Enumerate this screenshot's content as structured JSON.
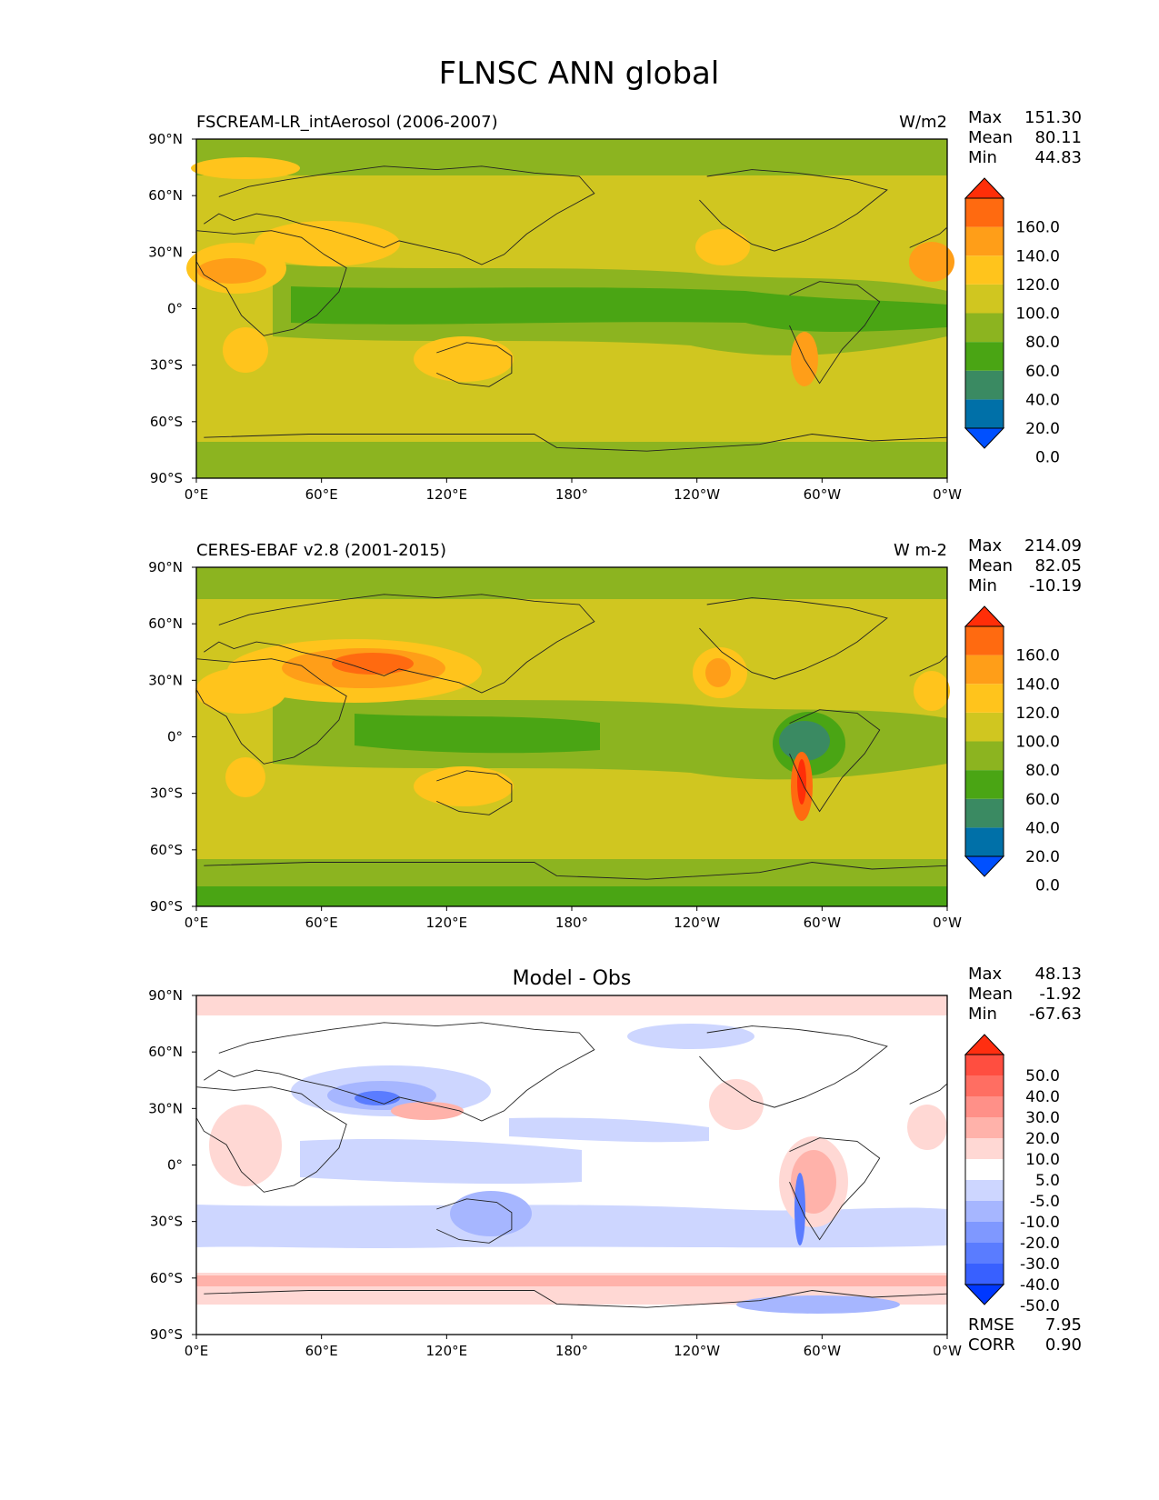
{
  "title": "FLNSC ANN global",
  "lon_ticks": [
    "0°E",
    "60°E",
    "120°E",
    "180°",
    "120°W",
    "60°W",
    "0°W"
  ],
  "lat_ticks": [
    "90°N",
    "60°N",
    "30°N",
    "0°",
    "30°S",
    "60°S",
    "90°S"
  ],
  "panels": [
    {
      "id": "model",
      "left_title": "FSCREAM-LR_intAerosol (2006-2007)",
      "center_title": "",
      "units": "W/m2",
      "stats": [
        {
          "label": "Max",
          "value": "151.30"
        },
        {
          "label": "Mean",
          "value": "80.11"
        },
        {
          "label": "Min",
          "value": "44.83"
        }
      ],
      "colorbar": {
        "labels": [
          "160.0",
          "140.0",
          "120.0",
          "100.0",
          "80.0",
          "60.0",
          "40.0",
          "20.0",
          "0.0"
        ],
        "colors": [
          "#0050ff",
          "#0070a8",
          "#3a8a62",
          "#4aa514",
          "#8cb420",
          "#d0c620",
          "#ffc41c",
          "#ff9e18",
          "#ff6a10",
          "#ff2e08"
        ]
      },
      "field_colors": {
        "base": "#d0c620",
        "moist": "#8cb420",
        "wet": "#4aa514",
        "warm": "#ffc41c",
        "hot": "#ff9e18",
        "hotter": "#ff6a10"
      }
    },
    {
      "id": "obs",
      "left_title": "CERES-EBAF v2.8 (2001-2015)",
      "center_title": "",
      "units": "W m-2",
      "stats": [
        {
          "label": "Max",
          "value": "214.09"
        },
        {
          "label": "Mean",
          "value": "82.05"
        },
        {
          "label": "Min",
          "value": "-10.19"
        }
      ],
      "colorbar": {
        "labels": [
          "160.0",
          "140.0",
          "120.0",
          "100.0",
          "80.0",
          "60.0",
          "40.0",
          "20.0",
          "0.0"
        ],
        "colors": [
          "#0050ff",
          "#0070a8",
          "#3a8a62",
          "#4aa514",
          "#8cb420",
          "#d0c620",
          "#ffc41c",
          "#ff9e18",
          "#ff6a10",
          "#ff2e08"
        ]
      },
      "field_colors": {
        "base": "#d0c620",
        "moist": "#8cb420",
        "wet": "#4aa514",
        "warm": "#ffc41c",
        "hot": "#ff9e18",
        "hotter": "#ff6a10",
        "hottest": "#ff2e08",
        "teal": "#3a8a62"
      }
    },
    {
      "id": "diff",
      "left_title": "",
      "center_title": "Model - Obs",
      "units": "",
      "stats": [
        {
          "label": "Max",
          "value": "48.13"
        },
        {
          "label": "Mean",
          "value": "-1.92"
        },
        {
          "label": "Min",
          "value": "-67.63"
        }
      ],
      "colorbar": {
        "labels": [
          "50.0",
          "40.0",
          "30.0",
          "20.0",
          "10.0",
          "5.0",
          "-5.0",
          "-10.0",
          "-20.0",
          "-30.0",
          "-40.0",
          "-50.0"
        ],
        "colors": [
          "#0038ff",
          "#3860ff",
          "#5a7cff",
          "#7f98ff",
          "#a6b6ff",
          "#cdd6ff",
          "#ffffff",
          "#ffd8d4",
          "#ffb2aa",
          "#ff9088",
          "#ff6e62",
          "#ff4e40",
          "#ff2e10"
        ]
      },
      "field_colors": {
        "base": "#ffffff",
        "lightblue": "#cdd6ff",
        "blue": "#a6b6ff",
        "deepblue": "#5a7cff",
        "lightred": "#ffd8d4",
        "red": "#ffb2aa",
        "deepred": "#ff6e62"
      },
      "footer_stats": [
        {
          "label": "RMSE",
          "value": "7.95"
        },
        {
          "label": "CORR",
          "value": "0.90"
        }
      ]
    }
  ]
}
